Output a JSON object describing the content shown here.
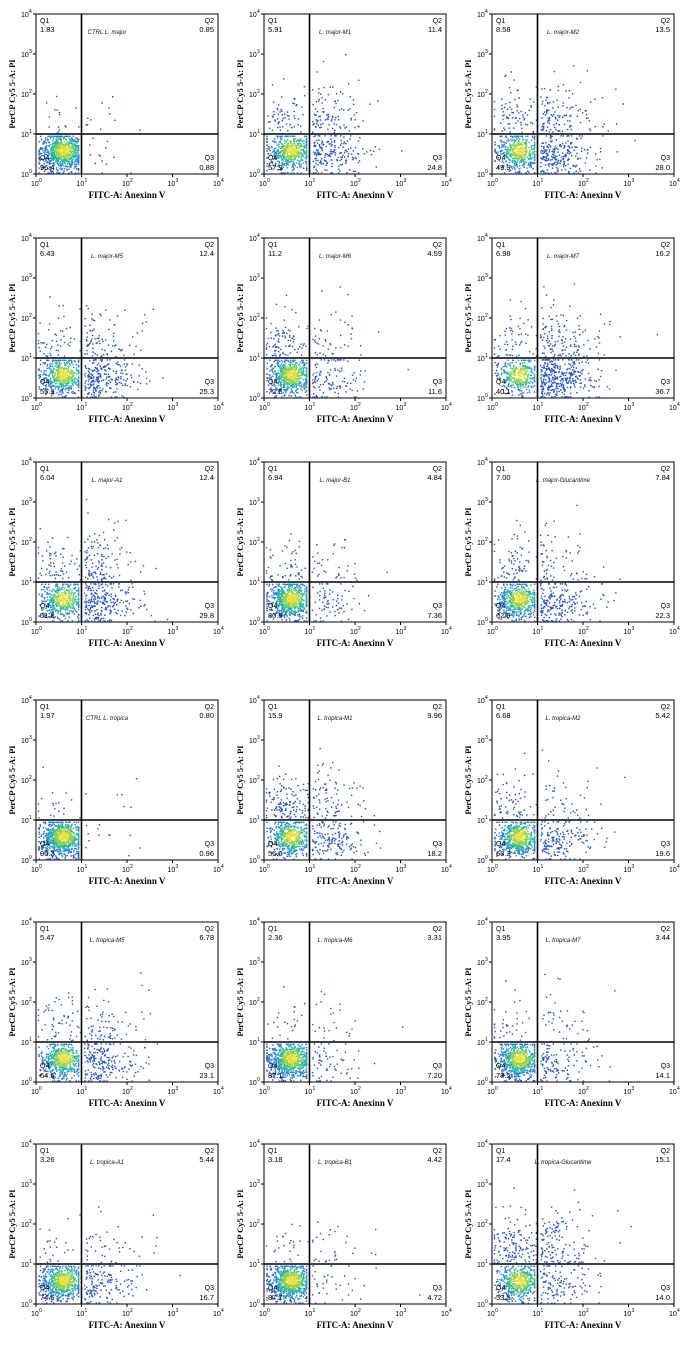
{
  "figure": {
    "xlabel": "FITC-A: Anexinn V",
    "ylabel": "PerCP Cy5 5-A: PI",
    "tick_labels": [
      "10",
      "10",
      "10",
      "10",
      "10"
    ],
    "tick_exponents": [
      "0",
      "1",
      "2",
      "3",
      "4"
    ],
    "quadrant_names": [
      "Q1",
      "Q2",
      "Q3",
      "Q4"
    ]
  },
  "chart_data": [
    {
      "type": "scatter",
      "title": "CTRL L. major",
      "quadrants": {
        "Q1": "1.83",
        "Q2": "0.85",
        "Q3": "0.88",
        "Q4": "96.4"
      },
      "xlim": [
        1,
        10000
      ],
      "ylim": [
        1,
        10000
      ],
      "xscale": "log",
      "yscale": "log"
    },
    {
      "type": "scatter",
      "title": "L. major-M1",
      "quadrants": {
        "Q1": "5.91",
        "Q2": "11.4",
        "Q3": "24.8",
        "Q4": "57.9"
      },
      "xlim": [
        1,
        10000
      ],
      "ylim": [
        1,
        10000
      ],
      "xscale": "log",
      "yscale": "log"
    },
    {
      "type": "scatter",
      "title": "L. major-M2",
      "quadrants": {
        "Q1": "8.58",
        "Q2": "13.5",
        "Q3": "28.0",
        "Q4": "49.9"
      },
      "xlim": [
        1,
        10000
      ],
      "ylim": [
        1,
        10000
      ],
      "xscale": "log",
      "yscale": "log"
    },
    {
      "type": "scatter",
      "title": "L. major-M5",
      "quadrants": {
        "Q1": "6.43",
        "Q2": "12.4",
        "Q3": "25.3",
        "Q4": "55.9"
      },
      "xlim": [
        1,
        10000
      ],
      "ylim": [
        1,
        10000
      ],
      "xscale": "log",
      "yscale": "log"
    },
    {
      "type": "scatter",
      "title": "L. major-M6",
      "quadrants": {
        "Q1": "11.2",
        "Q2": "4.59",
        "Q3": "11.6",
        "Q4": "72.6"
      },
      "xlim": [
        1,
        10000
      ],
      "ylim": [
        1,
        10000
      ],
      "xscale": "log",
      "yscale": "log"
    },
    {
      "type": "scatter",
      "title": "L. major-M7",
      "quadrants": {
        "Q1": "6.98",
        "Q2": "16.2",
        "Q3": "36.7",
        "Q4": "40.1"
      },
      "xlim": [
        1,
        10000
      ],
      "ylim": [
        1,
        10000
      ],
      "xscale": "log",
      "yscale": "log"
    },
    {
      "type": "scatter",
      "title": "L. major-A1",
      "quadrants": {
        "Q1": "6.04",
        "Q2": "12.4",
        "Q3": "29.8",
        "Q4": "51.8"
      },
      "xlim": [
        1,
        10000
      ],
      "ylim": [
        1,
        10000
      ],
      "xscale": "log",
      "yscale": "log"
    },
    {
      "type": "scatter",
      "title": "L. major-B1",
      "quadrants": {
        "Q1": "6.94",
        "Q2": "4.84",
        "Q3": "7.36",
        "Q4": "80.9"
      },
      "xlim": [
        1,
        10000
      ],
      "ylim": [
        1,
        10000
      ],
      "xscale": "log",
      "yscale": "log"
    },
    {
      "type": "scatter",
      "title": "L. major-Glucantime",
      "quadrants": {
        "Q1": "7.00",
        "Q2": "7.84",
        "Q3": "22.3",
        "Q4": "62.9"
      },
      "xlim": [
        1,
        10000
      ],
      "ylim": [
        1,
        10000
      ],
      "xscale": "log",
      "yscale": "log"
    },
    {
      "type": "scatter",
      "title": "CTRL L. tropica",
      "quadrants": {
        "Q1": "1.97",
        "Q2": "0.80",
        "Q3": "0.96",
        "Q4": "96.3"
      },
      "xlim": [
        1,
        10000
      ],
      "ylim": [
        1,
        10000
      ],
      "xscale": "log",
      "yscale": "log"
    },
    {
      "type": "scatter",
      "title": "L. tropica-M1",
      "quadrants": {
        "Q1": "15.9",
        "Q2": "9.96",
        "Q3": "18.2",
        "Q4": "56.0"
      },
      "xlim": [
        1,
        10000
      ],
      "ylim": [
        1,
        10000
      ],
      "xscale": "log",
      "yscale": "log"
    },
    {
      "type": "scatter",
      "title": "L. tropica-M2",
      "quadrants": {
        "Q1": "6.68",
        "Q2": "5.42",
        "Q3": "19.6",
        "Q4": "68.3"
      },
      "xlim": [
        1,
        10000
      ],
      "ylim": [
        1,
        10000
      ],
      "xscale": "log",
      "yscale": "log"
    },
    {
      "type": "scatter",
      "title": "L. tropica-M5",
      "quadrants": {
        "Q1": "5.47",
        "Q2": "6.78",
        "Q3": "23.1",
        "Q4": "64.6"
      },
      "xlim": [
        1,
        10000
      ],
      "ylim": [
        1,
        10000
      ],
      "xscale": "log",
      "yscale": "log"
    },
    {
      "type": "scatter",
      "title": "L. tropica-M6",
      "quadrants": {
        "Q1": "2.36",
        "Q2": "3.31",
        "Q3": "7.20",
        "Q4": "87.1"
      },
      "xlim": [
        1,
        10000
      ],
      "ylim": [
        1,
        10000
      ],
      "xscale": "log",
      "yscale": "log"
    },
    {
      "type": "scatter",
      "title": "L. tropica-M7",
      "quadrants": {
        "Q1": "3.95",
        "Q2": "3.44",
        "Q3": "14.1",
        "Q4": "78.5"
      },
      "xlim": [
        1,
        10000
      ],
      "ylim": [
        1,
        10000
      ],
      "xscale": "log",
      "yscale": "log"
    },
    {
      "type": "scatter",
      "title": "L. tropica-A1",
      "quadrants": {
        "Q1": "3.26",
        "Q2": "5.44",
        "Q3": "16.7",
        "Q4": "74.6"
      },
      "xlim": [
        1,
        10000
      ],
      "ylim": [
        1,
        10000
      ],
      "xscale": "log",
      "yscale": "log"
    },
    {
      "type": "scatter",
      "title": "L. tropica-B1",
      "quadrants": {
        "Q1": "3.18",
        "Q2": "4.42",
        "Q3": "4.72",
        "Q4": "87.7"
      },
      "xlim": [
        1,
        10000
      ],
      "ylim": [
        1,
        10000
      ],
      "xscale": "log",
      "yscale": "log"
    },
    {
      "type": "scatter",
      "title": "L. tropica-Glucantime",
      "quadrants": {
        "Q1": "17.4",
        "Q2": "15.1",
        "Q3": "14.0",
        "Q4": "53.5"
      },
      "xlim": [
        1,
        10000
      ],
      "ylim": [
        1,
        10000
      ],
      "xscale": "log",
      "yscale": "log"
    }
  ]
}
